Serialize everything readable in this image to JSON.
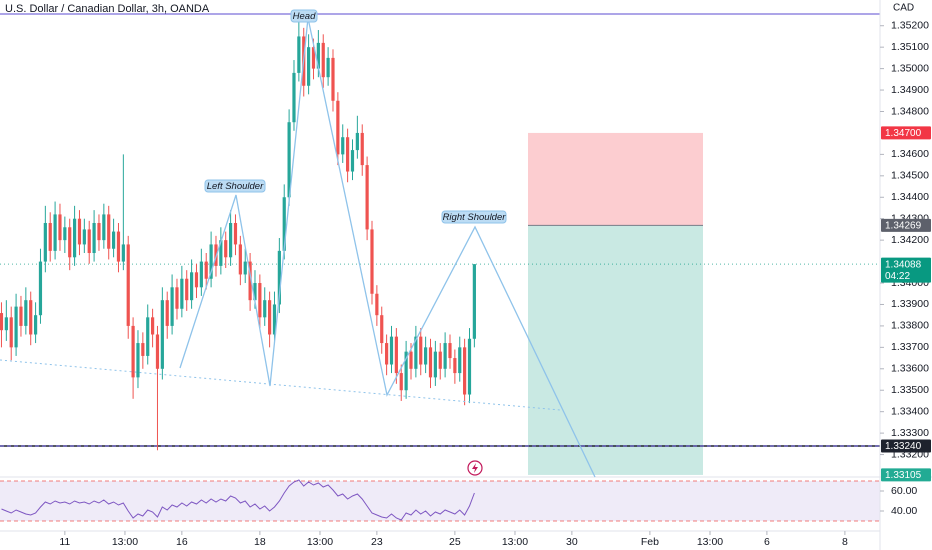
{
  "chart_data": {
    "type": "candlestick",
    "title": "U.S. Dollar / Canadian Dollar, 3h, OANDA",
    "currency": "CAD",
    "up_color": "#26a69a",
    "down_color": "#ef5350",
    "xlim": [
      -13.3,
      167.2
    ],
    "xticks": [
      {
        "value": 0,
        "label": "11"
      },
      {
        "value": 12.33,
        "label": "13:00"
      },
      {
        "value": 24,
        "label": "16"
      },
      {
        "value": 40,
        "label": "18"
      },
      {
        "value": 52.33,
        "label": "13:00"
      },
      {
        "value": 64,
        "label": "23"
      },
      {
        "value": 80,
        "label": "25"
      },
      {
        "value": 92.33,
        "label": "13:00"
      },
      {
        "value": 104,
        "label": "30"
      },
      {
        "value": 120,
        "label": "Feb"
      },
      {
        "value": 132.33,
        "label": "13:00"
      },
      {
        "value": 144,
        "label": "6"
      },
      {
        "value": 160,
        "label": "8"
      }
    ],
    "ylim": [
      1.331,
      1.3532
    ],
    "yticks": [
      {
        "value": 1.352,
        "label": "1.35200"
      },
      {
        "value": 1.351,
        "label": "1.35100"
      },
      {
        "value": 1.35,
        "label": "1.35000"
      },
      {
        "value": 1.349,
        "label": "1.34900"
      },
      {
        "value": 1.348,
        "label": "1.34800"
      },
      {
        "value": 1.346,
        "label": "1.34600"
      },
      {
        "value": 1.345,
        "label": "1.34500"
      },
      {
        "value": 1.344,
        "label": "1.34400"
      },
      {
        "value": 1.343,
        "label": "1.34300"
      },
      {
        "value": 1.342,
        "label": "1.34200"
      },
      {
        "value": 1.34,
        "label": "1.34000"
      },
      {
        "value": 1.339,
        "label": "1.33900"
      },
      {
        "value": 1.338,
        "label": "1.33800"
      },
      {
        "value": 1.337,
        "label": "1.33700"
      },
      {
        "value": 1.336,
        "label": "1.33600"
      },
      {
        "value": 1.335,
        "label": "1.33500"
      },
      {
        "value": 1.334,
        "label": "1.33400"
      },
      {
        "value": 1.333,
        "label": "1.33300"
      },
      {
        "value": 1.332,
        "label": "1.33200"
      }
    ],
    "price_labels": [
      {
        "value": 1.347,
        "label": "1.34700",
        "color": "#f23645"
      },
      {
        "value": 1.34269,
        "label": "1.34269",
        "color": "#5d606b"
      },
      {
        "value": 1.34088,
        "label": "1.34088",
        "color": "#089981"
      },
      {
        "value": 1.3324,
        "label": "1.33240",
        "color": "#1e222d"
      },
      {
        "value": 1.33105,
        "label": "1.33105",
        "color": "#22ab94"
      }
    ],
    "countdown": "04:22",
    "annotations": [
      "Left Shoulder",
      "Head",
      "Right Shoulder"
    ],
    "x": [
      -13,
      -12,
      -11,
      -10,
      -9,
      -8,
      -7,
      -6,
      -5,
      -4,
      -3,
      -2,
      -1,
      0,
      1,
      2,
      3,
      4,
      5,
      6,
      7,
      8,
      9,
      10,
      11,
      12,
      13,
      14,
      15,
      16,
      17,
      18,
      19,
      20,
      21,
      22,
      23,
      24,
      25,
      26,
      27,
      28,
      29,
      30,
      31,
      32,
      33,
      34,
      35,
      36,
      37,
      38,
      39,
      40,
      41,
      42,
      43,
      44,
      45,
      46,
      47,
      48,
      49,
      50,
      51,
      52,
      53,
      54,
      55,
      56,
      57,
      58,
      59,
      60,
      61,
      62,
      63,
      64,
      65,
      66,
      67,
      68,
      69,
      70,
      71,
      72,
      73,
      74,
      75,
      76,
      77,
      78,
      79,
      80,
      81,
      82,
      83,
      84
    ],
    "ohlc": [
      [
        1.3386,
        1.3391,
        1.337,
        1.3378
      ],
      [
        1.3378,
        1.3392,
        1.3373,
        1.3384
      ],
      [
        1.3384,
        1.3389,
        1.3364,
        1.337
      ],
      [
        1.337,
        1.3395,
        1.3366,
        1.3389
      ],
      [
        1.3389,
        1.3394,
        1.3375,
        1.338
      ],
      [
        1.338,
        1.3398,
        1.3376,
        1.3392
      ],
      [
        1.3392,
        1.3396,
        1.3371,
        1.3376
      ],
      [
        1.3376,
        1.3391,
        1.3372,
        1.3385
      ],
      [
        1.3385,
        1.3416,
        1.3381,
        1.341
      ],
      [
        1.341,
        1.3436,
        1.3405,
        1.3428
      ],
      [
        1.3428,
        1.3433,
        1.341,
        1.3415
      ],
      [
        1.3415,
        1.3438,
        1.3411,
        1.3432
      ],
      [
        1.3432,
        1.3437,
        1.3415,
        1.342
      ],
      [
        1.342,
        1.3431,
        1.3414,
        1.3426
      ],
      [
        1.3426,
        1.343,
        1.3406,
        1.3412
      ],
      [
        1.3412,
        1.3436,
        1.3408,
        1.343
      ],
      [
        1.343,
        1.3434,
        1.3413,
        1.3418
      ],
      [
        1.3418,
        1.343,
        1.3414,
        1.3425
      ],
      [
        1.3425,
        1.3429,
        1.3409,
        1.3414
      ],
      [
        1.3414,
        1.3434,
        1.341,
        1.3428
      ],
      [
        1.3428,
        1.3432,
        1.3415,
        1.342
      ],
      [
        1.342,
        1.3437,
        1.3416,
        1.3432
      ],
      [
        1.3432,
        1.3436,
        1.3411,
        1.3416
      ],
      [
        1.3416,
        1.343,
        1.3412,
        1.3424
      ],
      [
        1.3424,
        1.3428,
        1.3405,
        1.341
      ],
      [
        1.341,
        1.346,
        1.3406,
        1.3418
      ],
      [
        1.3418,
        1.3422,
        1.3374,
        1.338
      ],
      [
        1.338,
        1.3384,
        1.3346,
        1.3356
      ],
      [
        1.3356,
        1.3378,
        1.3351,
        1.3372
      ],
      [
        1.3372,
        1.3377,
        1.336,
        1.3366
      ],
      [
        1.3366,
        1.339,
        1.3362,
        1.3384
      ],
      [
        1.3384,
        1.3388,
        1.337,
        1.3376
      ],
      [
        1.3376,
        1.338,
        1.3322,
        1.336
      ],
      [
        1.336,
        1.3398,
        1.3355,
        1.3392
      ],
      [
        1.3392,
        1.3396,
        1.3374,
        1.338
      ],
      [
        1.338,
        1.3404,
        1.3376,
        1.3398
      ],
      [
        1.3398,
        1.3402,
        1.3383,
        1.3388
      ],
      [
        1.3388,
        1.3408,
        1.3384,
        1.3402
      ],
      [
        1.3402,
        1.3406,
        1.3387,
        1.3392
      ],
      [
        1.3392,
        1.3411,
        1.3388,
        1.3405
      ],
      [
        1.3405,
        1.3409,
        1.3393,
        1.3398
      ],
      [
        1.3398,
        1.3416,
        1.3394,
        1.341
      ],
      [
        1.341,
        1.3414,
        1.3397,
        1.3402
      ],
      [
        1.3402,
        1.3424,
        1.3398,
        1.3418
      ],
      [
        1.3418,
        1.3422,
        1.3403,
        1.3408
      ],
      [
        1.3408,
        1.3426,
        1.3404,
        1.342
      ],
      [
        1.342,
        1.3424,
        1.3407,
        1.3412
      ],
      [
        1.3412,
        1.3434,
        1.3408,
        1.3428
      ],
      [
        1.3428,
        1.3432,
        1.3413,
        1.3418
      ],
      [
        1.3418,
        1.3422,
        1.3399,
        1.3404
      ],
      [
        1.3404,
        1.3416,
        1.34,
        1.341
      ],
      [
        1.341,
        1.3414,
        1.3387,
        1.3392
      ],
      [
        1.3392,
        1.3406,
        1.3388,
        1.34
      ],
      [
        1.34,
        1.3404,
        1.3379,
        1.3384
      ],
      [
        1.3384,
        1.3398,
        1.338,
        1.3392
      ],
      [
        1.3392,
        1.3396,
        1.337,
        1.3376
      ],
      [
        1.3376,
        1.3396,
        1.3372,
        1.339
      ],
      [
        1.339,
        1.3421,
        1.3386,
        1.3415
      ],
      [
        1.3415,
        1.3446,
        1.3411,
        1.344
      ],
      [
        1.344,
        1.3481,
        1.3436,
        1.3475
      ],
      [
        1.3475,
        1.3504,
        1.3471,
        1.3498
      ],
      [
        1.3498,
        1.3522,
        1.3494,
        1.3515
      ],
      [
        1.3515,
        1.3519,
        1.3487,
        1.3492
      ],
      [
        1.3492,
        1.3516,
        1.3488,
        1.351
      ],
      [
        1.351,
        1.3514,
        1.3495,
        1.35
      ],
      [
        1.35,
        1.3518,
        1.3496,
        1.3512
      ],
      [
        1.3512,
        1.3516,
        1.3491,
        1.3496
      ],
      [
        1.3496,
        1.351,
        1.3492,
        1.3505
      ],
      [
        1.3505,
        1.3509,
        1.348,
        1.3485
      ],
      [
        1.3485,
        1.3489,
        1.3455,
        1.346
      ],
      [
        1.346,
        1.3474,
        1.3456,
        1.3468
      ],
      [
        1.3468,
        1.3472,
        1.3447,
        1.3452
      ],
      [
        1.3452,
        1.3467,
        1.3448,
        1.3462
      ],
      [
        1.3462,
        1.3478,
        1.3458,
        1.347
      ],
      [
        1.347,
        1.3474,
        1.345,
        1.3455
      ],
      [
        1.3455,
        1.3459,
        1.342,
        1.3425
      ],
      [
        1.3425,
        1.3429,
        1.339,
        1.3395
      ],
      [
        1.3395,
        1.3399,
        1.338,
        1.3385
      ],
      [
        1.3385,
        1.3389,
        1.3367,
        1.3372
      ],
      [
        1.3372,
        1.3376,
        1.3357,
        1.3362
      ],
      [
        1.3362,
        1.338,
        1.3358,
        1.3375
      ],
      [
        1.3375,
        1.3379,
        1.3353,
        1.3358
      ],
      [
        1.3358,
        1.3362,
        1.3345,
        1.335
      ],
      [
        1.335,
        1.3373,
        1.3346,
        1.3368
      ],
      [
        1.3368,
        1.3372,
        1.3355,
        1.336
      ],
      [
        1.336,
        1.338,
        1.3356,
        1.3375
      ],
      [
        1.3375,
        1.3379,
        1.3357,
        1.3362
      ],
      [
        1.3362,
        1.3375,
        1.3358,
        1.337
      ],
      [
        1.337,
        1.3374,
        1.3351,
        1.3356
      ],
      [
        1.3356,
        1.3373,
        1.3352,
        1.3368
      ],
      [
        1.3368,
        1.3372,
        1.3355,
        1.336
      ],
      [
        1.336,
        1.3377,
        1.3356,
        1.3372
      ],
      [
        1.3372,
        1.3376,
        1.336,
        1.3365
      ],
      [
        1.3365,
        1.3369,
        1.3353,
        1.3358
      ],
      [
        1.3358,
        1.3375,
        1.3354,
        1.337
      ],
      [
        1.337,
        1.3374,
        1.3343,
        1.3348
      ],
      [
        1.3348,
        1.3379,
        1.3344,
        1.3374
      ],
      [
        1.3374,
        1.34088,
        1.337,
        1.34088
      ]
    ],
    "rsi": {
      "color": "#7e57c2",
      "ylim": [
        20,
        74
      ],
      "yticks": [
        {
          "value": 60,
          "label": "60.00"
        },
        {
          "value": 40,
          "label": "40.00"
        }
      ],
      "levels": [
        70,
        30
      ],
      "values": [
        42,
        40,
        38,
        41,
        39,
        37,
        36,
        38,
        44,
        49,
        47,
        50,
        48,
        49,
        47,
        50,
        48,
        49,
        47,
        50,
        48,
        51,
        47,
        49,
        46,
        48,
        40,
        33,
        37,
        35,
        41,
        39,
        34,
        44,
        41,
        46,
        44,
        48,
        45,
        49,
        47,
        51,
        48,
        52,
        49,
        52,
        50,
        55,
        53,
        48,
        50,
        44,
        47,
        42,
        45,
        40,
        44,
        50,
        58,
        65,
        69,
        71,
        65,
        69,
        66,
        68,
        64,
        66,
        61,
        55,
        57,
        52,
        55,
        57,
        52,
        45,
        38,
        36,
        34,
        33,
        37,
        33,
        31,
        38,
        36,
        41,
        37,
        40,
        35,
        39,
        37,
        41,
        39,
        37,
        41,
        36,
        45,
        58
      ]
    }
  }
}
